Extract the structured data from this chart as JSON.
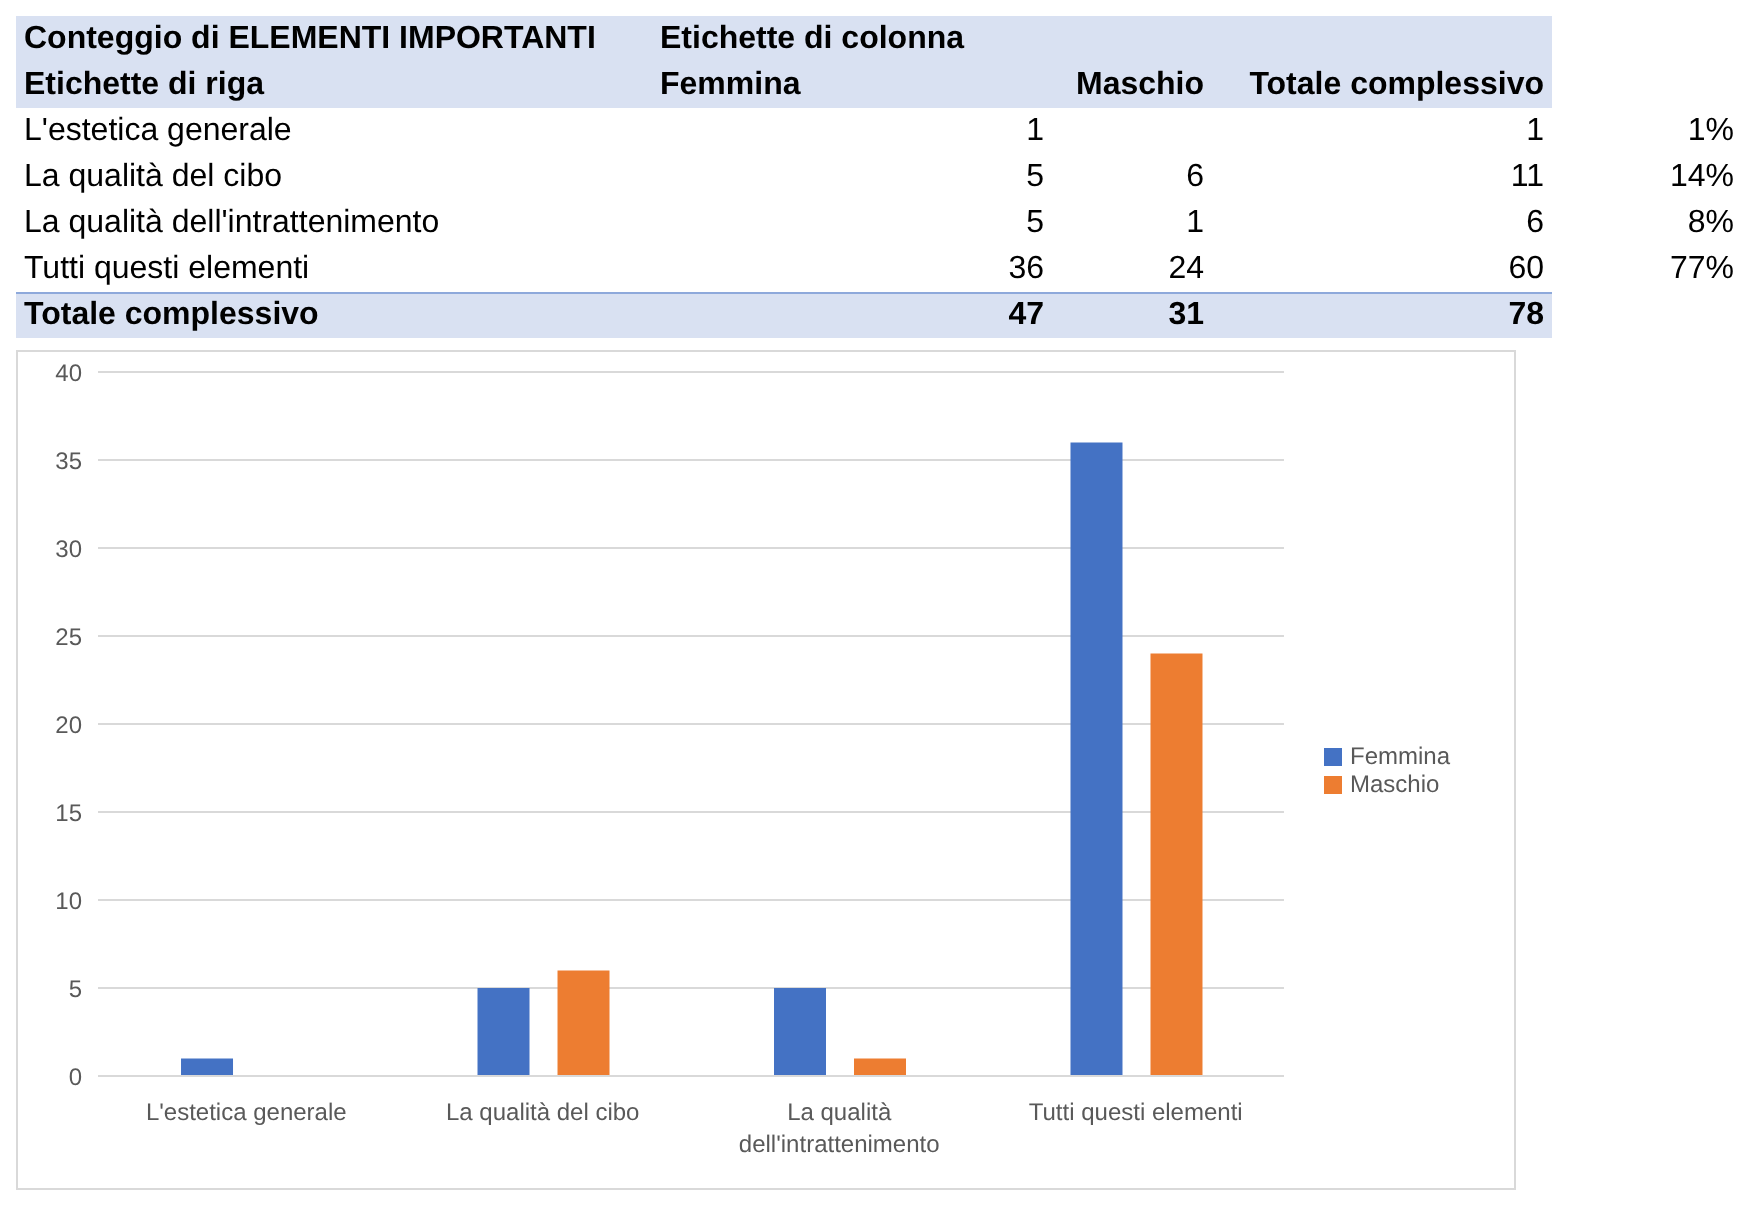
{
  "chart_data": [
    {
      "type": "other",
      "title": "Conteggio di ELEMENTI IMPORTANTI",
      "categories": [
        "L'estetica generale",
        "La qualità del cibo",
        "La qualità dell'intrattenimento",
        "Tutti questi elementi"
      ],
      "series": [
        {
          "name": "Femmina",
          "values": [
            1,
            5,
            5,
            36
          ],
          "value_labels": [
            "1",
            "5",
            "5",
            "36"
          ]
        },
        {
          "name": "Maschio",
          "values": [
            null,
            6,
            1,
            24
          ],
          "value_labels": [
            null,
            "6",
            "1",
            "24"
          ]
        }
      ],
      "totals": [
        "1",
        "11",
        "6",
        "60"
      ],
      "annotations": [
        "Etichette di colonna",
        "Etichette di riga",
        "Totale complessivo",
        "1%",
        "14%",
        "8%",
        "77%",
        "Totale complessivo",
        "47",
        "31",
        "78"
      ]
    },
    {
      "type": "bar",
      "categories": [
        "L'estetica generale",
        "La qualità del cibo",
        "La qualità dell'intrattenimento",
        "Tutti questi elementi"
      ],
      "series": [
        {
          "name": "Femmina",
          "color": "#4472c4",
          "values": [
            1,
            5,
            5,
            36
          ]
        },
        {
          "name": "Maschio",
          "color": "#ed7d31",
          "values": [
            null,
            6,
            1,
            24
          ]
        }
      ],
      "ylim": [
        0,
        40
      ],
      "yticks": [
        0,
        5,
        10,
        15,
        20,
        25,
        30,
        35,
        40
      ],
      "grid": "y",
      "legend": "right"
    }
  ]
}
